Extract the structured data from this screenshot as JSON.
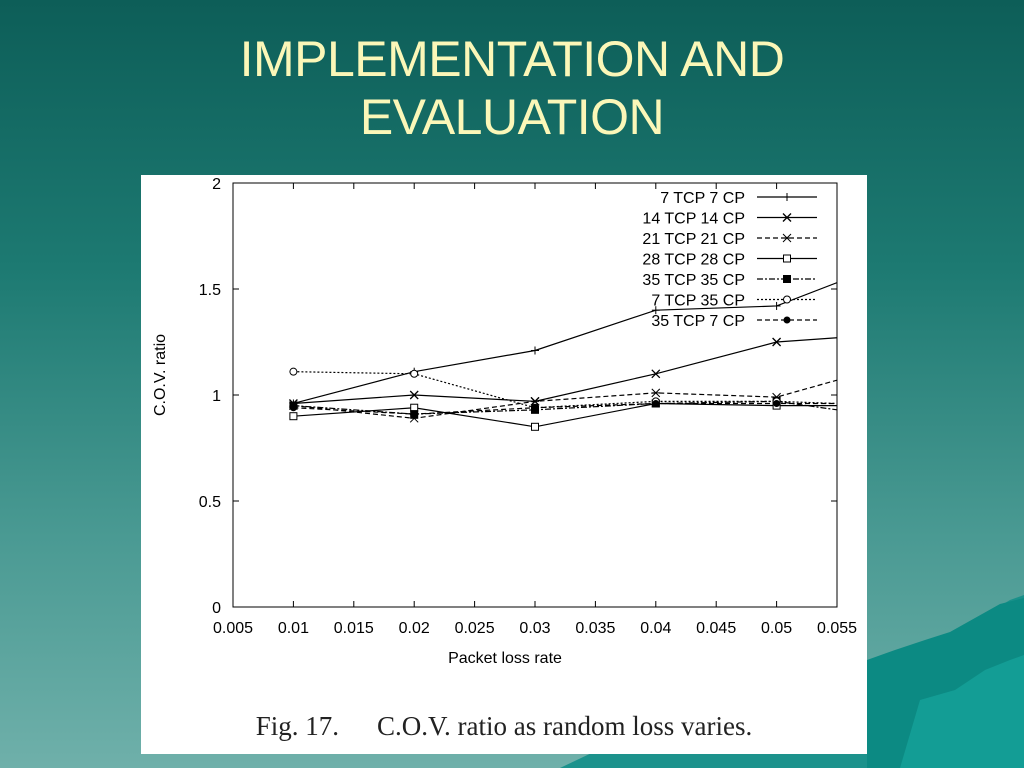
{
  "slide": {
    "title_line1": "IMPLEMENTATION AND",
    "title_line2": "EVALUATION",
    "caption_number": "Fig. 17.",
    "caption_text": "C.O.V. ratio as random loss varies."
  },
  "colors": {
    "background_top": "#0d5e58",
    "background_bottom": "#6fb0aa",
    "title_text": "#fbf7b8",
    "chart_ink": "#000000"
  },
  "chart_data": {
    "type": "line",
    "title": "",
    "xlabel": "Packet loss rate",
    "ylabel": "C.O.V. ratio",
    "xlim": [
      0.005,
      0.055
    ],
    "ylim": [
      0,
      2
    ],
    "xticks": [
      0.005,
      0.01,
      0.015,
      0.02,
      0.025,
      0.03,
      0.035,
      0.04,
      0.045,
      0.05,
      0.055
    ],
    "xtick_labels": [
      "0.005",
      "0.01",
      "0.015",
      "0.02",
      "0.025",
      "0.03",
      "0.035",
      "0.04",
      "0.045",
      "0.05",
      "0.055"
    ],
    "yticks": [
      0,
      0.5,
      1,
      1.5,
      2
    ],
    "ytick_labels": [
      "0",
      "0.5",
      "1",
      "1.5",
      "2"
    ],
    "grid": false,
    "legend_position": "top-right",
    "x": [
      0.01,
      0.02,
      0.03,
      0.04,
      0.05,
      0.055
    ],
    "series": [
      {
        "name": "7 TCP 7 CP",
        "marker": "plus",
        "dash": "solid",
        "values": [
          0.96,
          1.11,
          1.21,
          1.4,
          1.42,
          1.53
        ]
      },
      {
        "name": "14 TCP 14 CP",
        "marker": "cross",
        "dash": "solid",
        "values": [
          0.96,
          1.0,
          0.97,
          1.1,
          1.25,
          1.27
        ]
      },
      {
        "name": "21 TCP 21 CP",
        "marker": "star",
        "dash": "dashed",
        "values": [
          0.95,
          0.89,
          0.97,
          1.01,
          0.99,
          1.07
        ]
      },
      {
        "name": "28 TCP 28 CP",
        "marker": "square",
        "dash": "solid",
        "values": [
          0.9,
          0.94,
          0.85,
          0.96,
          0.95,
          0.95
        ]
      },
      {
        "name": "35 TCP 35 CP",
        "marker": "filled-square",
        "dash": "dashdot",
        "values": [
          0.95,
          0.91,
          0.93,
          0.96,
          0.97,
          0.93
        ]
      },
      {
        "name": "7 TCP 35 CP",
        "marker": "circle",
        "dash": "dotted",
        "values": [
          1.11,
          1.1,
          0.94,
          0.97,
          0.97,
          0.96
        ]
      },
      {
        "name": "35 TCP 7 CP",
        "marker": "filled-circle",
        "dash": "dashed",
        "values": [
          0.94,
          0.91,
          0.94,
          0.96,
          0.96,
          0.96
        ]
      }
    ]
  }
}
